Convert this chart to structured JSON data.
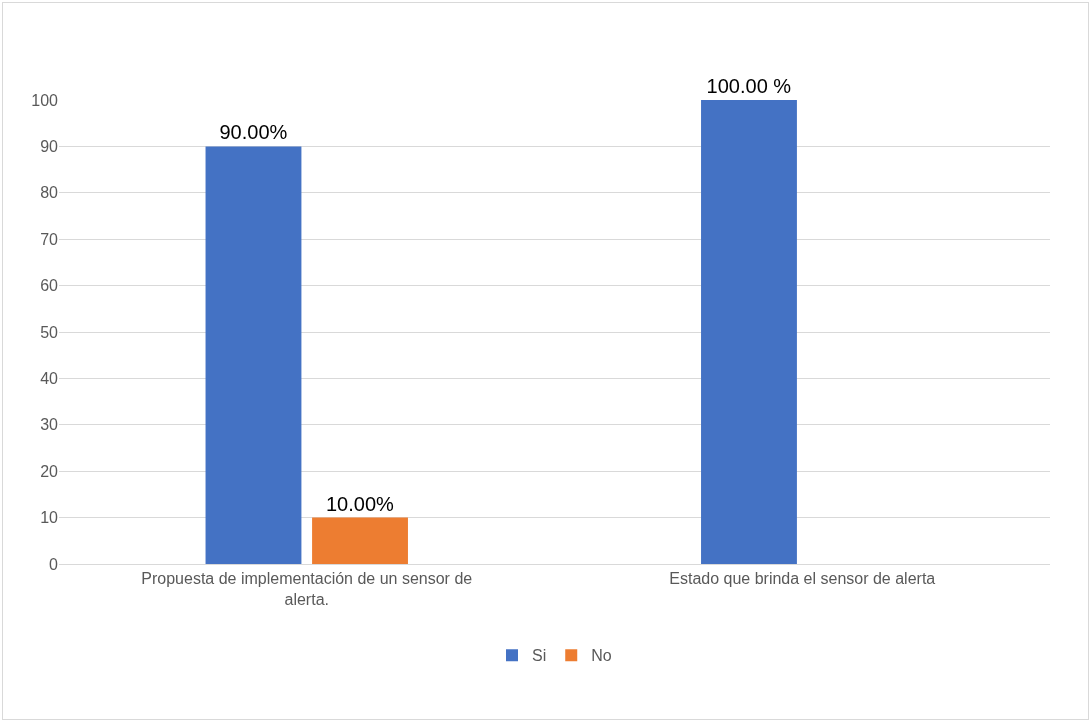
{
  "chart_data": {
    "type": "bar",
    "categories": [
      "Propuesta de implementación de un sensor de alerta.",
      "Estado que brinda el sensor de alerta"
    ],
    "series": [
      {
        "name": "Si",
        "color": "#4472c4",
        "values": [
          90,
          100
        ],
        "value_labels": [
          "90.00%",
          "100.00 %"
        ]
      },
      {
        "name": "No",
        "color": "#ed7d31",
        "values": [
          10,
          null
        ],
        "value_labels": [
          "10.00%",
          null
        ]
      }
    ],
    "ylim": [
      0,
      100
    ],
    "yticks": [
      0,
      10,
      20,
      30,
      40,
      50,
      60,
      70,
      80,
      90,
      100
    ],
    "grid": "y",
    "legend": "bottom"
  }
}
